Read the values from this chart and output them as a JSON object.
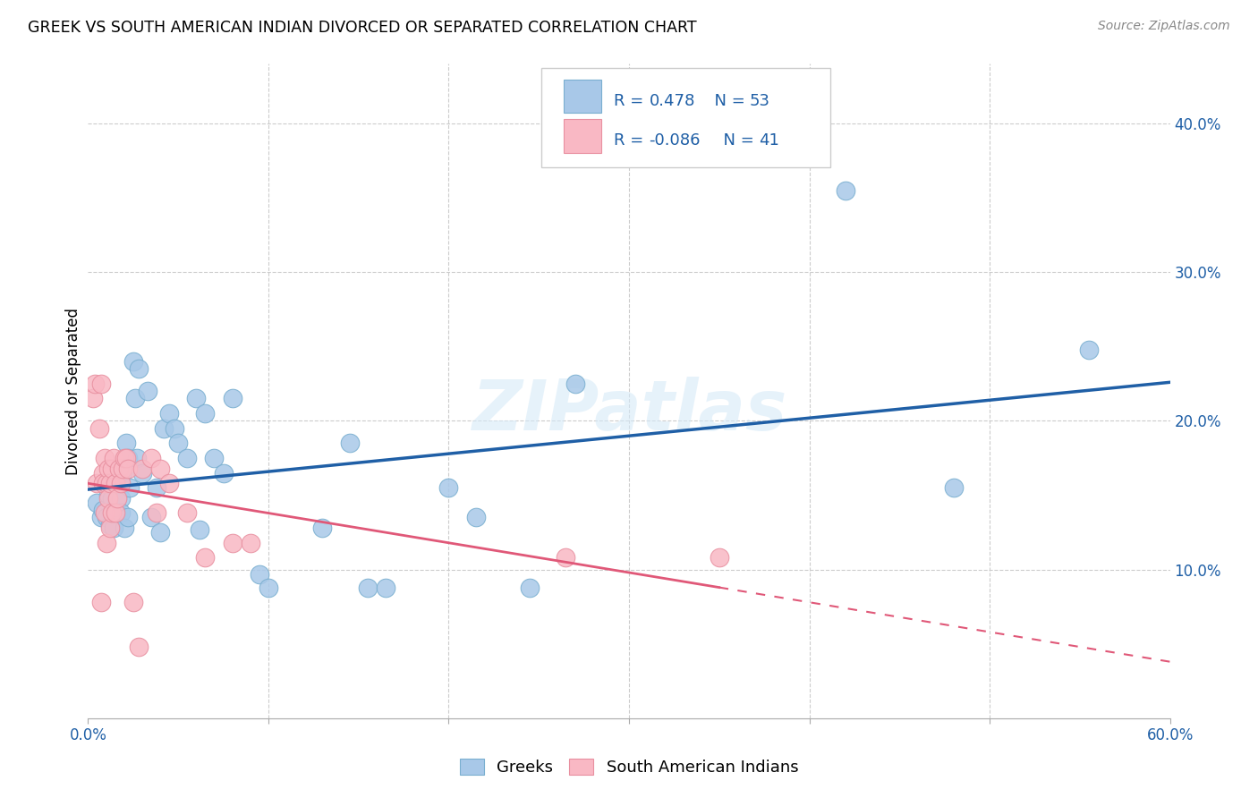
{
  "title": "GREEK VS SOUTH AMERICAN INDIAN DIVORCED OR SEPARATED CORRELATION CHART",
  "source": "Source: ZipAtlas.com",
  "ylabel": "Divorced or Separated",
  "watermark": "ZIPatlas",
  "xlim": [
    0.0,
    0.6
  ],
  "ylim": [
    0.0,
    0.44
  ],
  "ytick_vals": [
    0.1,
    0.2,
    0.3,
    0.4
  ],
  "ytick_labels": [
    "10.0%",
    "20.0%",
    "30.0%",
    "40.0%"
  ],
  "xtick_vals": [
    0.0,
    0.1,
    0.2,
    0.3,
    0.4,
    0.5,
    0.6
  ],
  "xtick_labels": [
    "0.0%",
    "",
    "",
    "",
    "",
    "",
    "60.0%"
  ],
  "greek_color": "#a8c8e8",
  "greek_edge_color": "#7aafd0",
  "south_american_color": "#f9b8c4",
  "south_american_edge_color": "#e890a0",
  "greek_line_color": "#1f5fa6",
  "south_american_line_color": "#e05878",
  "legend_R_greek": "0.478",
  "legend_N_greek": "53",
  "legend_R_south": "-0.086",
  "legend_N_south": "41",
  "legend_text_color": "#1f5fa6",
  "greek_scatter_x": [
    0.005,
    0.007,
    0.008,
    0.01,
    0.011,
    0.012,
    0.013,
    0.014,
    0.015,
    0.015,
    0.016,
    0.017,
    0.018,
    0.018,
    0.019,
    0.02,
    0.021,
    0.022,
    0.022,
    0.023,
    0.025,
    0.026,
    0.027,
    0.028,
    0.03,
    0.033,
    0.035,
    0.038,
    0.04,
    0.042,
    0.045,
    0.048,
    0.05,
    0.055,
    0.06,
    0.062,
    0.065,
    0.07,
    0.075,
    0.08,
    0.095,
    0.1,
    0.13,
    0.145,
    0.155,
    0.165,
    0.2,
    0.215,
    0.245,
    0.27,
    0.42,
    0.48,
    0.555
  ],
  "greek_scatter_y": [
    0.145,
    0.135,
    0.14,
    0.135,
    0.15,
    0.13,
    0.148,
    0.128,
    0.138,
    0.142,
    0.148,
    0.158,
    0.148,
    0.138,
    0.165,
    0.128,
    0.185,
    0.135,
    0.175,
    0.155,
    0.24,
    0.215,
    0.175,
    0.235,
    0.165,
    0.22,
    0.135,
    0.155,
    0.125,
    0.195,
    0.205,
    0.195,
    0.185,
    0.175,
    0.215,
    0.127,
    0.205,
    0.175,
    0.165,
    0.215,
    0.097,
    0.088,
    0.128,
    0.185,
    0.088,
    0.088,
    0.155,
    0.135,
    0.088,
    0.225,
    0.355,
    0.155,
    0.248
  ],
  "greek_scatter_size": [
    60,
    60,
    60,
    60,
    60,
    60,
    60,
    60,
    60,
    60,
    60,
    60,
    60,
    60,
    60,
    60,
    60,
    60,
    60,
    60,
    60,
    60,
    60,
    60,
    60,
    60,
    60,
    60,
    60,
    60,
    60,
    60,
    60,
    60,
    60,
    60,
    60,
    60,
    60,
    60,
    60,
    60,
    60,
    60,
    60,
    60,
    60,
    60,
    60,
    60,
    60,
    60,
    60
  ],
  "south_scatter_x": [
    0.003,
    0.004,
    0.005,
    0.006,
    0.007,
    0.007,
    0.008,
    0.008,
    0.009,
    0.009,
    0.01,
    0.01,
    0.011,
    0.011,
    0.012,
    0.012,
    0.013,
    0.013,
    0.014,
    0.015,
    0.015,
    0.016,
    0.017,
    0.018,
    0.019,
    0.02,
    0.021,
    0.022,
    0.025,
    0.028,
    0.03,
    0.035,
    0.038,
    0.04,
    0.045,
    0.055,
    0.065,
    0.08,
    0.09,
    0.265,
    0.35
  ],
  "south_scatter_y": [
    0.215,
    0.225,
    0.158,
    0.195,
    0.225,
    0.078,
    0.165,
    0.158,
    0.138,
    0.175,
    0.158,
    0.118,
    0.148,
    0.168,
    0.128,
    0.158,
    0.168,
    0.138,
    0.175,
    0.158,
    0.138,
    0.148,
    0.168,
    0.158,
    0.168,
    0.175,
    0.175,
    0.168,
    0.078,
    0.048,
    0.168,
    0.175,
    0.138,
    0.168,
    0.158,
    0.138,
    0.108,
    0.118,
    0.118,
    0.108,
    0.108
  ],
  "background_color": "#ffffff",
  "grid_color": "#cccccc"
}
